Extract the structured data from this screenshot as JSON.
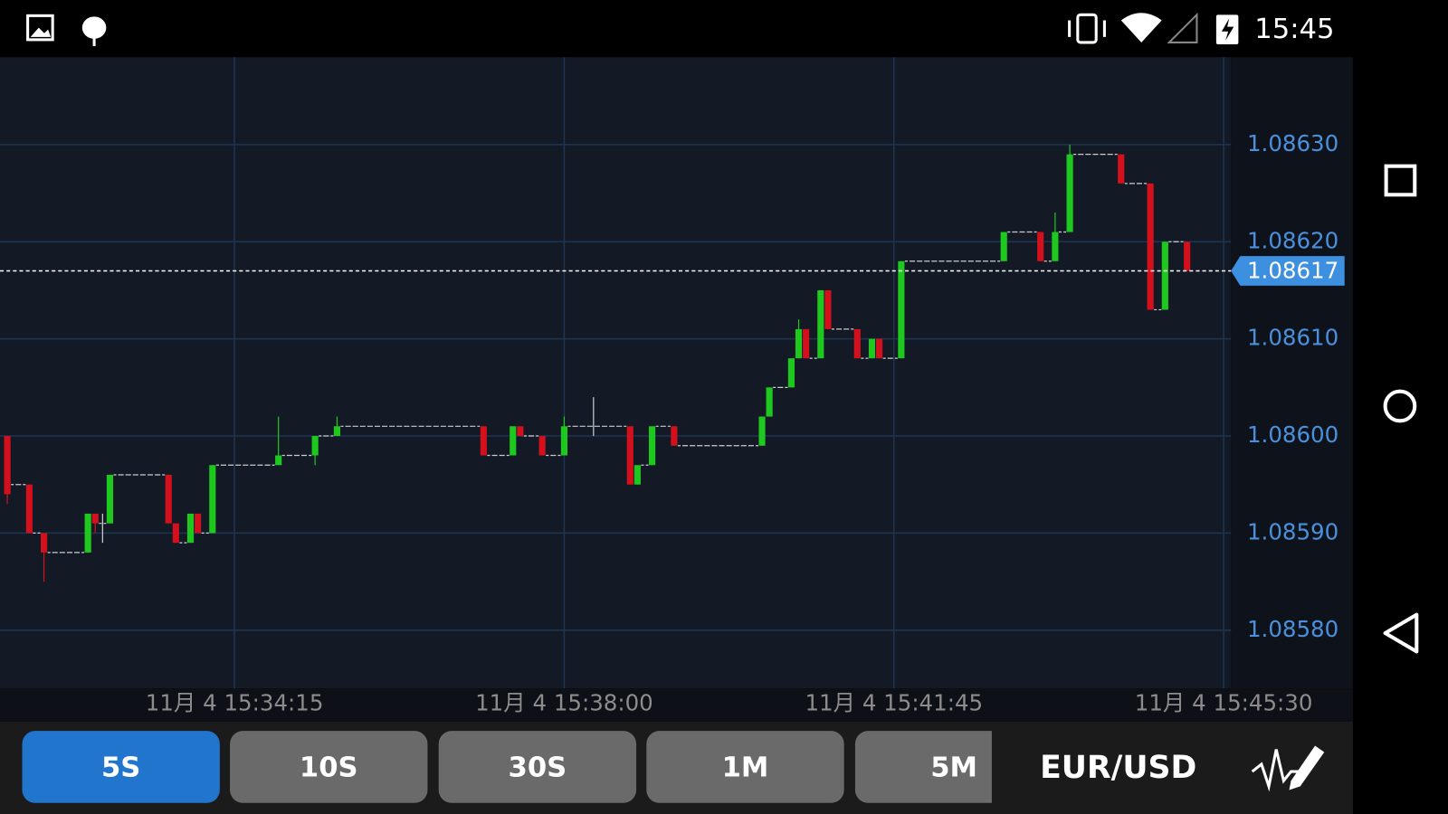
{
  "status_bar": {
    "time": "15:45"
  },
  "chart_data": {
    "type": "candlestick",
    "up_color": "#1ec81e",
    "down_color": "#d3101c",
    "grid": true,
    "xlim": [
      55895,
      56735
    ],
    "xticks": [
      {
        "value": 56055,
        "label": "11月 4 15:34:15"
      },
      {
        "value": 56280,
        "label": "11月 4 15:38:00"
      },
      {
        "value": 56505,
        "label": "11月 4 15:41:45"
      },
      {
        "value": 56730,
        "label": "11月 4 15:45:30"
      }
    ],
    "ylim": [
      1.08574,
      1.08639
    ],
    "yticks": [
      {
        "value": 1.0858,
        "label": "1.08580"
      },
      {
        "value": 1.0859,
        "label": "1.08590"
      },
      {
        "value": 1.086,
        "label": "1.08600"
      },
      {
        "value": 1.0861,
        "label": "1.08610"
      },
      {
        "value": 1.0862,
        "label": "1.08620"
      },
      {
        "value": 1.0863,
        "label": "1.08630"
      }
    ],
    "current_price": 1.08617,
    "x": [
      55900,
      55905,
      55910,
      55915,
      55920,
      55925,
      55930,
      55935,
      55940,
      55945,
      55950,
      55955,
      55960,
      55965,
      55970,
      55975,
      55980,
      55985,
      55990,
      55995,
      56000,
      56005,
      56010,
      56015,
      56020,
      56025,
      56030,
      56035,
      56040,
      56045,
      56050,
      56055,
      56060,
      56065,
      56070,
      56075,
      56080,
      56085,
      56090,
      56095,
      56100,
      56105,
      56110,
      56115,
      56120,
      56125,
      56130,
      56135,
      56140,
      56145,
      56150,
      56155,
      56160,
      56165,
      56170,
      56175,
      56180,
      56185,
      56190,
      56195,
      56200,
      56205,
      56210,
      56215,
      56220,
      56225,
      56230,
      56235,
      56240,
      56245,
      56250,
      56255,
      56260,
      56265,
      56270,
      56275,
      56280,
      56285,
      56290,
      56295,
      56300,
      56305,
      56310,
      56315,
      56320,
      56325,
      56330,
      56335,
      56340,
      56345,
      56350,
      56355,
      56360,
      56365,
      56370,
      56375,
      56380,
      56385,
      56390,
      56395,
      56400,
      56405,
      56410,
      56415,
      56420,
      56425,
      56430,
      56435,
      56440,
      56445,
      56450,
      56455,
      56460,
      56465,
      56470,
      56475,
      56480,
      56485,
      56490,
      56495,
      56500,
      56505,
      56510,
      56515,
      56520,
      56525,
      56530,
      56535,
      56540,
      56545,
      56550,
      56555,
      56560,
      56565,
      56570,
      56575,
      56580,
      56585,
      56590,
      56595,
      56600,
      56605,
      56610,
      56615,
      56620,
      56625,
      56630,
      56635,
      56640,
      56645,
      56650,
      56655,
      56660,
      56665,
      56670,
      56675,
      56680,
      56685,
      56690,
      56695,
      56700,
      56705
    ],
    "ohlc": [
      [
        1.086,
        1.086,
        1.08593,
        1.08594
      ],
      [
        1.08595,
        1.08595,
        1.08595,
        1.08595
      ],
      [
        1.08595,
        1.08595,
        1.08595,
        1.08595
      ],
      [
        1.08595,
        1.08595,
        1.0859,
        1.0859
      ],
      [
        1.0859,
        1.0859,
        1.0859,
        1.0859
      ],
      [
        1.0859,
        1.0859,
        1.08585,
        1.08588
      ],
      [
        1.08588,
        1.08588,
        1.08588,
        1.08588
      ],
      [
        1.08588,
        1.08588,
        1.08588,
        1.08588
      ],
      [
        1.08588,
        1.08588,
        1.08588,
        1.08588
      ],
      [
        1.08588,
        1.08588,
        1.08588,
        1.08588
      ],
      [
        1.08588,
        1.08588,
        1.08588,
        1.08588
      ],
      [
        1.08588,
        1.08592,
        1.08588,
        1.08592
      ],
      [
        1.08592,
        1.08592,
        1.0859,
        1.08591
      ],
      [
        1.08591,
        1.08592,
        1.08589,
        1.08591
      ],
      [
        1.08591,
        1.08596,
        1.08591,
        1.08596
      ],
      [
        1.08596,
        1.08596,
        1.08596,
        1.08596
      ],
      [
        1.08596,
        1.08596,
        1.08596,
        1.08596
      ],
      [
        1.08596,
        1.08596,
        1.08596,
        1.08596
      ],
      [
        1.08596,
        1.08596,
        1.08596,
        1.08596
      ],
      [
        1.08596,
        1.08596,
        1.08596,
        1.08596
      ],
      [
        1.08596,
        1.08596,
        1.08596,
        1.08596
      ],
      [
        1.08596,
        1.08596,
        1.08596,
        1.08596
      ],
      [
        1.08596,
        1.08596,
        1.08591,
        1.08591
      ],
      [
        1.08591,
        1.08591,
        1.08589,
        1.08589
      ],
      [
        1.08589,
        1.08589,
        1.08589,
        1.08589
      ],
      [
        1.08589,
        1.08592,
        1.08589,
        1.08592
      ],
      [
        1.08592,
        1.08592,
        1.0859,
        1.0859
      ],
      [
        1.0859,
        1.0859,
        1.0859,
        1.0859
      ],
      [
        1.0859,
        1.08597,
        1.0859,
        1.08597
      ],
      [
        1.08597,
        1.08597,
        1.08597,
        1.08597
      ],
      [
        1.08597,
        1.08597,
        1.08597,
        1.08597
      ],
      [
        1.08597,
        1.08597,
        1.08597,
        1.08597
      ],
      [
        1.08597,
        1.08597,
        1.08597,
        1.08597
      ],
      [
        1.08597,
        1.08597,
        1.08597,
        1.08597
      ],
      [
        1.08597,
        1.08597,
        1.08597,
        1.08597
      ],
      [
        1.08597,
        1.08597,
        1.08597,
        1.08597
      ],
      [
        1.08597,
        1.08597,
        1.08597,
        1.08597
      ],
      [
        1.08597,
        1.08602,
        1.08597,
        1.08598
      ],
      [
        1.08598,
        1.08598,
        1.08598,
        1.08598
      ],
      [
        1.08598,
        1.08598,
        1.08598,
        1.08598
      ],
      [
        1.08598,
        1.08598,
        1.08598,
        1.08598
      ],
      [
        1.08598,
        1.08598,
        1.08598,
        1.08598
      ],
      [
        1.08598,
        1.086,
        1.08597,
        1.086
      ],
      [
        1.086,
        1.086,
        1.086,
        1.086
      ],
      [
        1.086,
        1.086,
        1.086,
        1.086
      ],
      [
        1.086,
        1.08602,
        1.086,
        1.08601
      ],
      [
        1.08601,
        1.08601,
        1.08601,
        1.08601
      ],
      [
        1.08601,
        1.08601,
        1.08601,
        1.08601
      ],
      [
        1.08601,
        1.08601,
        1.08601,
        1.08601
      ],
      [
        1.08601,
        1.08601,
        1.08601,
        1.08601
      ],
      [
        1.08601,
        1.08601,
        1.08601,
        1.08601
      ],
      [
        1.08601,
        1.08601,
        1.08601,
        1.08601
      ],
      [
        1.08601,
        1.08601,
        1.08601,
        1.08601
      ],
      [
        1.08601,
        1.08601,
        1.08601,
        1.08601
      ],
      [
        1.08601,
        1.08601,
        1.08601,
        1.08601
      ],
      [
        1.08601,
        1.08601,
        1.08601,
        1.08601
      ],
      [
        1.08601,
        1.08601,
        1.08601,
        1.08601
      ],
      [
        1.08601,
        1.08601,
        1.08601,
        1.08601
      ],
      [
        1.08601,
        1.08601,
        1.08601,
        1.08601
      ],
      [
        1.08601,
        1.08601,
        1.08601,
        1.08601
      ],
      [
        1.08601,
        1.08601,
        1.08601,
        1.08601
      ],
      [
        1.08601,
        1.08601,
        1.08601,
        1.08601
      ],
      [
        1.08601,
        1.08601,
        1.08601,
        1.08601
      ],
      [
        1.08601,
        1.08601,
        1.08601,
        1.08601
      ],
      [
        1.08601,
        1.08601,
        1.08601,
        1.08601
      ],
      [
        1.08601,
        1.08601,
        1.08598,
        1.08598
      ],
      [
        1.08598,
        1.08598,
        1.08598,
        1.08598
      ],
      [
        1.08598,
        1.08598,
        1.08598,
        1.08598
      ],
      [
        1.08598,
        1.08598,
        1.08598,
        1.08598
      ],
      [
        1.08598,
        1.08601,
        1.08598,
        1.08601
      ],
      [
        1.08601,
        1.08601,
        1.086,
        1.086
      ],
      [
        1.086,
        1.086,
        1.086,
        1.086
      ],
      [
        1.086,
        1.086,
        1.086,
        1.086
      ],
      [
        1.086,
        1.086,
        1.08598,
        1.08598
      ],
      [
        1.08598,
        1.08598,
        1.08598,
        1.08598
      ],
      [
        1.08598,
        1.08598,
        1.08598,
        1.08598
      ],
      [
        1.08598,
        1.08602,
        1.08598,
        1.08601
      ],
      [
        1.08601,
        1.08601,
        1.08601,
        1.08601
      ],
      [
        1.08601,
        1.08601,
        1.08601,
        1.08601
      ],
      [
        1.08601,
        1.08601,
        1.08601,
        1.08601
      ],
      [
        1.08601,
        1.08604,
        1.086,
        1.08601
      ],
      [
        1.08601,
        1.08601,
        1.08601,
        1.08601
      ],
      [
        1.08601,
        1.08601,
        1.08601,
        1.08601
      ],
      [
        1.08601,
        1.08601,
        1.08601,
        1.08601
      ],
      [
        1.08601,
        1.08601,
        1.08601,
        1.08601
      ],
      [
        1.08601,
        1.08601,
        1.08595,
        1.08595
      ],
      [
        1.08595,
        1.08597,
        1.08595,
        1.08597
      ],
      [
        1.08597,
        1.08597,
        1.08597,
        1.08597
      ],
      [
        1.08597,
        1.08601,
        1.08597,
        1.08601
      ],
      [
        1.08601,
        1.08601,
        1.08601,
        1.08601
      ],
      [
        1.08601,
        1.08601,
        1.08601,
        1.08601
      ],
      [
        1.08601,
        1.08601,
        1.08599,
        1.08599
      ],
      [
        1.08599,
        1.08599,
        1.08599,
        1.08599
      ],
      [
        1.08599,
        1.08599,
        1.08599,
        1.08599
      ],
      [
        1.08599,
        1.08599,
        1.08599,
        1.08599
      ],
      [
        1.08599,
        1.08599,
        1.08599,
        1.08599
      ],
      [
        1.08599,
        1.08599,
        1.08599,
        1.08599
      ],
      [
        1.08599,
        1.08599,
        1.08599,
        1.08599
      ],
      [
        1.08599,
        1.08599,
        1.08599,
        1.08599
      ],
      [
        1.08599,
        1.08599,
        1.08599,
        1.08599
      ],
      [
        1.08599,
        1.08599,
        1.08599,
        1.08599
      ],
      [
        1.08599,
        1.08599,
        1.08599,
        1.08599
      ],
      [
        1.08599,
        1.08599,
        1.08599,
        1.08599
      ],
      [
        1.08599,
        1.08602,
        1.08599,
        1.08602
      ],
      [
        1.08602,
        1.08605,
        1.08602,
        1.08605
      ],
      [
        1.08605,
        1.08605,
        1.08605,
        1.08605
      ],
      [
        1.08605,
        1.08605,
        1.08605,
        1.08605
      ],
      [
        1.08605,
        1.08608,
        1.08605,
        1.08608
      ],
      [
        1.08608,
        1.08612,
        1.08608,
        1.08611
      ],
      [
        1.08611,
        1.08611,
        1.08608,
        1.08608
      ],
      [
        1.08608,
        1.08608,
        1.08608,
        1.08608
      ],
      [
        1.08608,
        1.08615,
        1.08608,
        1.08615
      ],
      [
        1.08615,
        1.08615,
        1.08611,
        1.08611
      ],
      [
        1.08611,
        1.08611,
        1.08611,
        1.08611
      ],
      [
        1.08611,
        1.08611,
        1.08611,
        1.08611
      ],
      [
        1.08611,
        1.08611,
        1.08611,
        1.08611
      ],
      [
        1.08611,
        1.08611,
        1.08608,
        1.08608
      ],
      [
        1.08608,
        1.08608,
        1.08608,
        1.08608
      ],
      [
        1.08608,
        1.0861,
        1.08608,
        1.0861
      ],
      [
        1.0861,
        1.0861,
        1.08608,
        1.08608
      ],
      [
        1.08608,
        1.08608,
        1.08608,
        1.08608
      ],
      [
        1.08608,
        1.08608,
        1.08608,
        1.08608
      ],
      [
        1.08608,
        1.08618,
        1.08608,
        1.08618
      ],
      [
        1.08618,
        1.08618,
        1.08618,
        1.08618
      ],
      [
        1.08618,
        1.08618,
        1.08618,
        1.08618
      ],
      [
        1.08618,
        1.08618,
        1.08618,
        1.08618
      ],
      [
        1.08618,
        1.08618,
        1.08618,
        1.08618
      ],
      [
        1.08618,
        1.08618,
        1.08618,
        1.08618
      ],
      [
        1.08618,
        1.08618,
        1.08618,
        1.08618
      ],
      [
        1.08618,
        1.08618,
        1.08618,
        1.08618
      ],
      [
        1.08618,
        1.08618,
        1.08618,
        1.08618
      ],
      [
        1.08618,
        1.08618,
        1.08618,
        1.08618
      ],
      [
        1.08618,
        1.08618,
        1.08618,
        1.08618
      ],
      [
        1.08618,
        1.08618,
        1.08618,
        1.08618
      ],
      [
        1.08618,
        1.08618,
        1.08618,
        1.08618
      ],
      [
        1.08618,
        1.08618,
        1.08618,
        1.08618
      ],
      [
        1.08618,
        1.08621,
        1.08618,
        1.08621
      ],
      [
        1.08621,
        1.08621,
        1.08621,
        1.08621
      ],
      [
        1.08621,
        1.08621,
        1.08621,
        1.08621
      ],
      [
        1.08621,
        1.08621,
        1.08621,
        1.08621
      ],
      [
        1.08621,
        1.08621,
        1.08621,
        1.08621
      ],
      [
        1.08621,
        1.08621,
        1.08618,
        1.08618
      ],
      [
        1.08618,
        1.08618,
        1.08618,
        1.08618
      ],
      [
        1.08618,
        1.08623,
        1.08618,
        1.08621
      ],
      [
        1.08621,
        1.08621,
        1.08621,
        1.08621
      ],
      [
        1.08621,
        1.0863,
        1.08621,
        1.08629
      ],
      [
        1.08629,
        1.08629,
        1.08629,
        1.08629
      ],
      [
        1.08629,
        1.08629,
        1.08629,
        1.08629
      ],
      [
        1.08629,
        1.08629,
        1.08629,
        1.08629
      ],
      [
        1.08629,
        1.08629,
        1.08629,
        1.08629
      ],
      [
        1.08629,
        1.08629,
        1.08629,
        1.08629
      ],
      [
        1.08629,
        1.08629,
        1.08629,
        1.08629
      ],
      [
        1.08629,
        1.08629,
        1.08626,
        1.08626
      ],
      [
        1.08626,
        1.08626,
        1.08626,
        1.08626
      ],
      [
        1.08626,
        1.08626,
        1.08626,
        1.08626
      ],
      [
        1.08626,
        1.08626,
        1.08626,
        1.08626
      ],
      [
        1.08626,
        1.08626,
        1.08613,
        1.08613
      ],
      [
        1.08613,
        1.08613,
        1.08613,
        1.08613
      ],
      [
        1.08613,
        1.0862,
        1.08613,
        1.0862
      ],
      [
        1.0862,
        1.0862,
        1.0862,
        1.0862
      ],
      [
        1.0862,
        1.0862,
        1.0862,
        1.0862
      ],
      [
        1.0862,
        1.0862,
        1.08617,
        1.08617
      ]
    ]
  },
  "toolbar": {
    "buttons": [
      "5S",
      "10S",
      "30S",
      "1M",
      "5M"
    ],
    "symbol": "EUR/USD"
  }
}
